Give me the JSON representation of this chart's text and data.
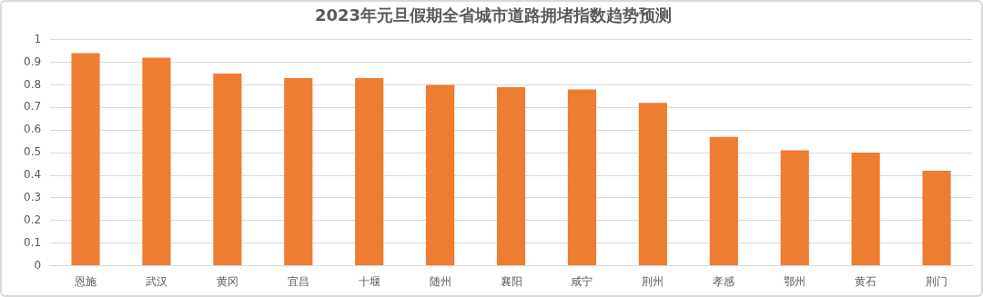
{
  "chart_data": {
    "type": "bar",
    "title": "2023年元旦假期全省城市道路拥堵指数趋势预测",
    "categories": [
      "恩施",
      "武汉",
      "黄冈",
      "宜昌",
      "十堰",
      "随州",
      "襄阳",
      "咸宁",
      "荆州",
      "孝感",
      "鄂州",
      "黄石",
      "荆门"
    ],
    "values": [
      0.94,
      0.92,
      0.85,
      0.83,
      0.83,
      0.8,
      0.79,
      0.78,
      0.72,
      0.57,
      0.51,
      0.5,
      0.42
    ],
    "color": "#ed7d31",
    "ylim": [
      0,
      1
    ],
    "yticks": [
      0,
      0.1,
      0.2,
      0.3,
      0.4,
      0.5,
      0.6,
      0.7,
      0.8,
      0.9,
      1
    ],
    "grid": "y",
    "legend": false
  }
}
